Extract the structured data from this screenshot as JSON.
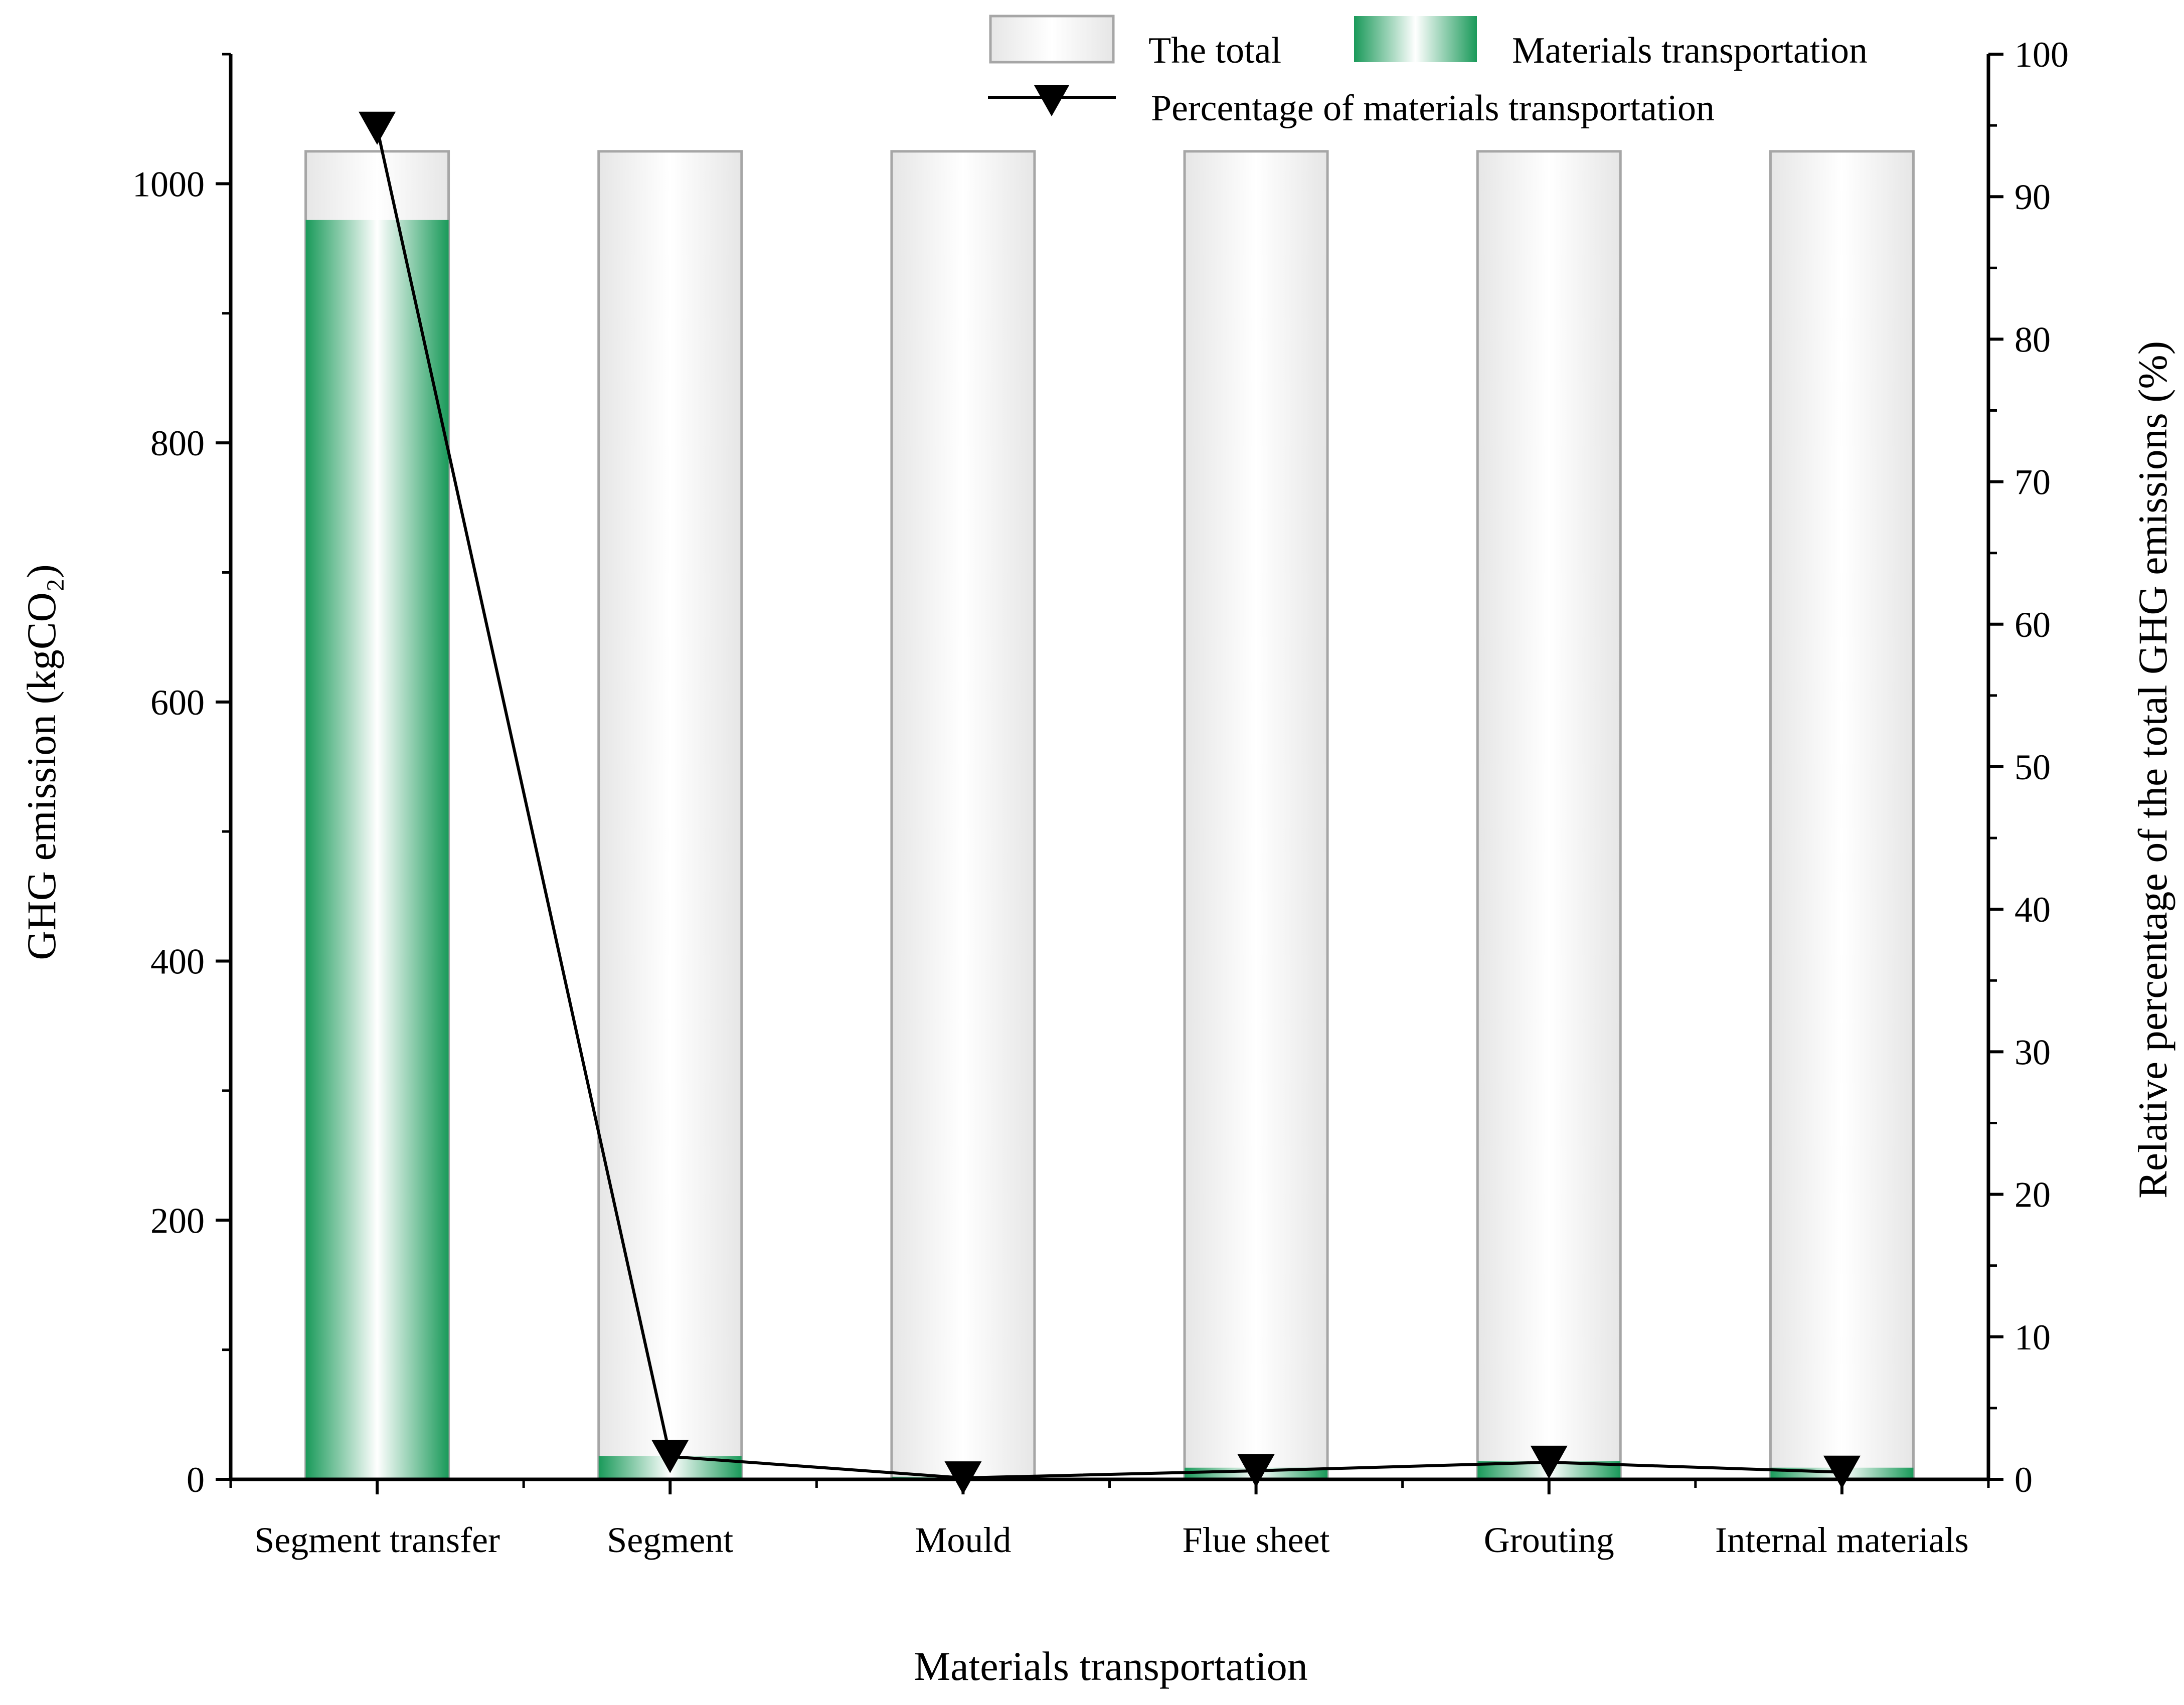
{
  "chart_data": {
    "type": "bar",
    "xlabel": "Materials transportation",
    "ylabel_left": "GHG emission (kgCO₂)",
    "ylabel_right": "Relative percentage of the total GHG emissions (%)",
    "categories": [
      "Segment transfer",
      "Segment",
      "Mould",
      "Flue sheet",
      "Grouting",
      "Internal materials"
    ],
    "series": [
      {
        "name": "The total",
        "type": "bar",
        "axis": "left",
        "color": "#f2f2f2",
        "values": [
          1025,
          1025,
          1025,
          1025,
          1025,
          1025
        ]
      },
      {
        "name": "Materials transportation",
        "type": "bar",
        "axis": "left",
        "color": "#1a9a5a",
        "values": [
          972,
          18,
          2,
          9,
          14,
          9
        ]
      },
      {
        "name": "Percentage of materials transportation",
        "type": "line",
        "axis": "right",
        "marker": "triangle-down",
        "color": "#000000",
        "values": [
          94.8,
          1.6,
          0.1,
          0.6,
          1.2,
          0.5
        ]
      }
    ],
    "ylim_left": [
      0,
      1100
    ],
    "ylim_right": [
      0,
      100
    ],
    "yticks_left": [
      0,
      200,
      400,
      600,
      800,
      1000
    ],
    "yticks_right": [
      0,
      10,
      20,
      30,
      40,
      50,
      60,
      70,
      80,
      90,
      100
    ],
    "grid": false,
    "legend_position": "top-right"
  }
}
